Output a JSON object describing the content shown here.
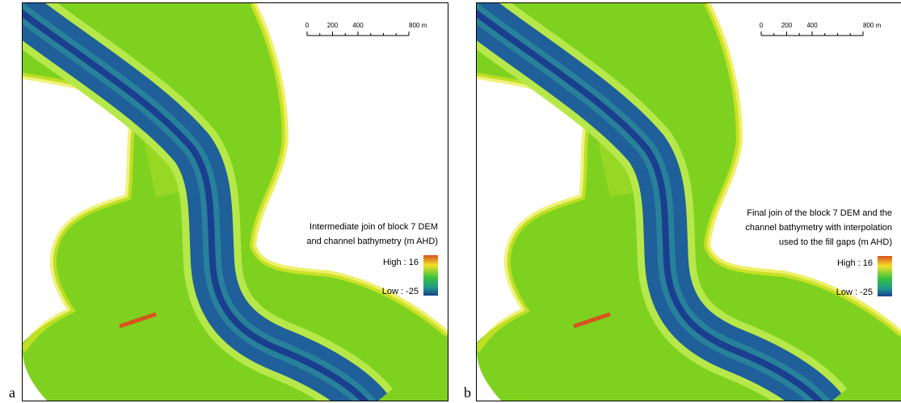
{
  "panels": [
    {
      "label": "a",
      "legend": {
        "title": [
          "Intermediate join of block 7 DEM",
          "and channel bathymetry (m AHD)"
        ],
        "high": "High : 16",
        "low": "Low : -25"
      },
      "scale_bar": [
        "0",
        "200",
        "400",
        "800 m"
      ]
    },
    {
      "label": "b",
      "legend": {
        "title": [
          "Final join of the block 7 DEM and the",
          "channel bathymetry with interpolation",
          "used to the fill gaps (m AHD)"
        ],
        "high": "High : 16",
        "low": "Low : -25"
      },
      "scale_bar": [
        "0",
        "200",
        "400",
        "800 m"
      ]
    }
  ]
}
